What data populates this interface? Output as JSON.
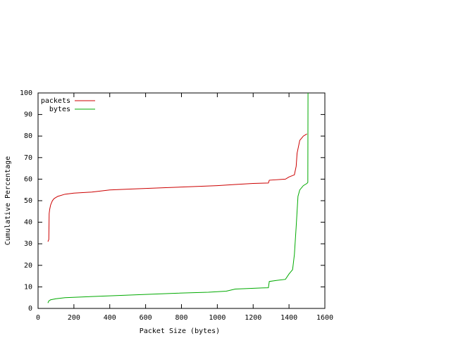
{
  "chart_data": {
    "type": "line",
    "xlabel": "Packet Size (bytes)",
    "ylabel": "Cumulative Percentage",
    "xlim": [
      0,
      1600
    ],
    "xticks": [
      0,
      200,
      400,
      600,
      800,
      1000,
      1200,
      1400,
      1600
    ],
    "ylim": [
      0,
      100
    ],
    "yticks": [
      0,
      10,
      20,
      30,
      40,
      50,
      60,
      70,
      80,
      90,
      100
    ],
    "legend": "top-left",
    "series": [
      {
        "name": "packets",
        "color": "#cc0000",
        "x": [
          55,
          60,
          62,
          65,
          70,
          80,
          90,
          110,
          150,
          200,
          300,
          400,
          550,
          700,
          850,
          1000,
          1100,
          1200,
          1285,
          1290,
          1380,
          1400,
          1430,
          1440,
          1445,
          1460,
          1470,
          1480,
          1500
        ],
        "values": [
          31,
          32,
          44,
          46,
          48,
          50,
          51,
          52,
          53,
          53.5,
          54,
          55,
          55.5,
          56,
          56.5,
          57,
          57.5,
          58,
          58.2,
          59.5,
          60,
          61,
          62,
          66,
          72,
          78,
          79,
          80,
          81
        ]
      },
      {
        "name": "bytes",
        "color": "#00aa00",
        "x": [
          55,
          60,
          70,
          100,
          150,
          300,
          450,
          600,
          750,
          950,
          1050,
          1100,
          1250,
          1285,
          1290,
          1330,
          1380,
          1400,
          1420,
          1430,
          1440,
          1450,
          1460,
          1480,
          1500,
          1505,
          1506
        ],
        "values": [
          2.5,
          3.5,
          4,
          4.5,
          5,
          5.5,
          6,
          6.5,
          7,
          7.5,
          8,
          9,
          9.5,
          9.6,
          12.5,
          13,
          13.5,
          16,
          18,
          25,
          38,
          52,
          55,
          57,
          58,
          58.5,
          100
        ]
      }
    ]
  }
}
